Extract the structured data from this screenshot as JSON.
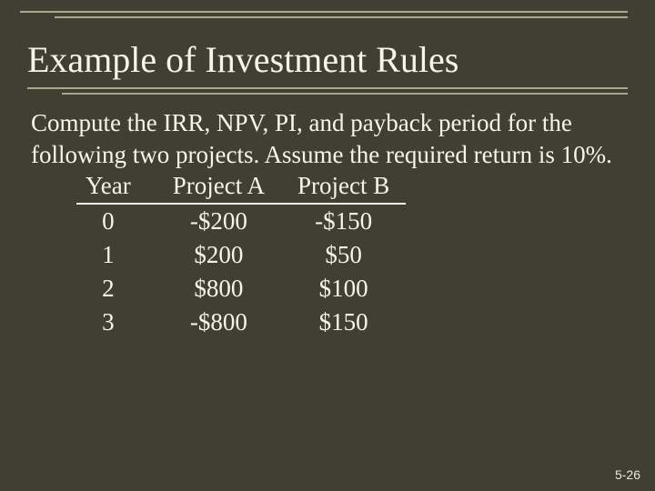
{
  "slide": {
    "title": "Example of Investment Rules",
    "body": "Compute the IRR, NPV, PI, and payback period for the following  two projects. Assume the required return is 10%.",
    "number": "5-26",
    "background_color": "#3f3f33",
    "text_color": "#f5f5e8",
    "rule_color": "#a8a890",
    "title_fontsize": 40,
    "body_fontsize": 27
  },
  "table": {
    "headers": {
      "year": "Year",
      "a": "Project A",
      "b": "Project B"
    },
    "rows": [
      {
        "year": "0",
        "a": "-$200",
        "b": "-$150"
      },
      {
        "year": "1",
        "a": "$200",
        "b": "$50"
      },
      {
        "year": "2",
        "a": "$800",
        "b": "$100"
      },
      {
        "year": "3",
        "a": "-$800",
        "b": "$150"
      }
    ]
  }
}
